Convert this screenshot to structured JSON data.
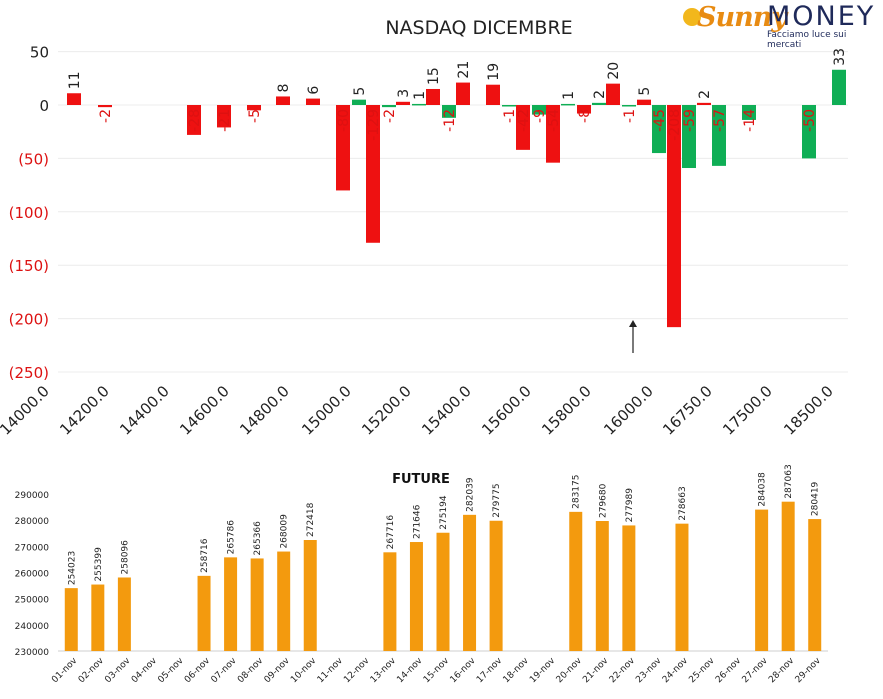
{
  "logo": {
    "brand_a": "Sunny",
    "brand_b": "MONEY",
    "tagline": "Facciamo luce sui mercati"
  },
  "colors": {
    "negative": "#ee1111",
    "positive": "#0fae55",
    "future": "#f39a0e",
    "neg_label": "#dd1111",
    "text": "#222222"
  },
  "arrow": {
    "x": 15900.0,
    "y_from": -233,
    "y_to": -197
  },
  "chart_data": [
    {
      "type": "bar",
      "title": "NASDAQ DICEMBRE",
      "ylim": [
        -250,
        50
      ],
      "yticks": [
        50,
        0,
        -50,
        -100,
        -150,
        -200,
        -250
      ],
      "ytick_labels": [
        "50",
        "0",
        "(50)",
        "(100)",
        "(150)",
        "(200)",
        "(250)"
      ],
      "xtick_labels": [
        "14000.0",
        "14200.0",
        "14400.0",
        "14600.0",
        "14800.0",
        "15000.0",
        "15200.0",
        "15400.0",
        "15600.0",
        "15800.0",
        "16000.0",
        "16750.0",
        "17500.0",
        "18500.0"
      ],
      "grid": true,
      "series": [
        {
          "color": "negative",
          "values": [
            11,
            -2,
            -28,
            -21,
            -5,
            8,
            6,
            -80,
            -129,
            3,
            15,
            21,
            19,
            -42,
            -54,
            -8,
            20,
            5,
            -208,
            2
          ]
        },
        {
          "color": "positive",
          "values": [
            5,
            -2,
            1,
            -12,
            -1,
            -9,
            1,
            2,
            -1,
            -45,
            -59,
            -57,
            -14,
            -50,
            33
          ]
        }
      ],
      "bar_labels": [
        "11",
        "-2",
        "-28",
        "-21",
        "-5",
        "8",
        "6",
        "-80",
        "-129",
        "3",
        "15",
        "21",
        "19",
        "-42",
        "-54",
        "-8",
        "20",
        "5",
        "-208",
        "2",
        "5",
        "-2",
        "1",
        "-12",
        "-1",
        "-9",
        "1",
        "2",
        "-1",
        "-45",
        "-59",
        "-57",
        "-14",
        "-50",
        "33"
      ]
    },
    {
      "type": "bar",
      "title": "FUTURE",
      "ylim": [
        230000,
        290000
      ],
      "yticks": [
        230000,
        240000,
        250000,
        260000,
        270000,
        280000,
        290000
      ],
      "ytick_labels": [
        "230000",
        "240000",
        "250000",
        "260000",
        "270000",
        "280000",
        "290000"
      ],
      "categories": [
        "01-nov",
        "02-nov",
        "03-nov",
        "04-nov",
        "05-nov",
        "06-nov",
        "07-nov",
        "08-nov",
        "09-nov",
        "10-nov",
        "11-nov",
        "12-nov",
        "13-nov",
        "14-nov",
        "15-nov",
        "16-nov",
        "17-nov",
        "18-nov",
        "19-nov",
        "20-nov",
        "21-nov",
        "22-nov",
        "23-nov",
        "24-nov",
        "25-nov",
        "26-nov",
        "27-nov",
        "28-nov",
        "29-nov"
      ],
      "values": [
        254023,
        255399,
        258096,
        null,
        null,
        258716,
        265786,
        265366,
        268009,
        272418,
        null,
        null,
        267716,
        271646,
        275194,
        282039,
        279775,
        null,
        null,
        283175,
        279680,
        277989,
        null,
        278663,
        null,
        null,
        284038,
        287063,
        280419
      ],
      "value_labels": [
        "254023",
        "255399",
        "258096",
        "",
        "",
        "258716",
        "265786",
        "265366",
        "268009",
        "272418",
        "",
        "",
        "267716",
        "271646",
        "275194",
        "282039",
        "279775",
        "",
        "",
        "283175",
        "279680",
        "277989",
        "",
        "278663",
        "",
        "",
        "284038",
        "287063",
        "280419"
      ]
    }
  ]
}
